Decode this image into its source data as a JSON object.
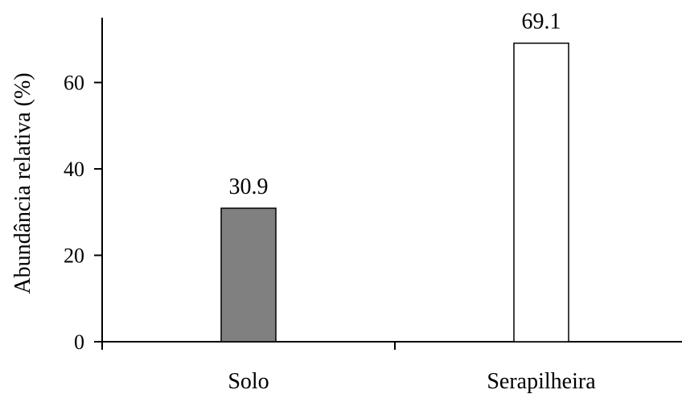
{
  "chart_data": {
    "type": "bar",
    "categories": [
      "Solo",
      "Serapilheira"
    ],
    "values": [
      30.9,
      69.1
    ],
    "data_labels": [
      "30.9",
      "69.1"
    ],
    "colors": [
      "#808080",
      "#ffffff"
    ],
    "title": "",
    "xlabel": "",
    "ylabel": "Abundância relativa (%)",
    "ylim": [
      0,
      75
    ],
    "yticks": [
      0,
      20,
      40,
      60
    ],
    "ytick_labels": [
      "0",
      "20",
      "40",
      "60"
    ],
    "grid": false,
    "legend": "none"
  }
}
